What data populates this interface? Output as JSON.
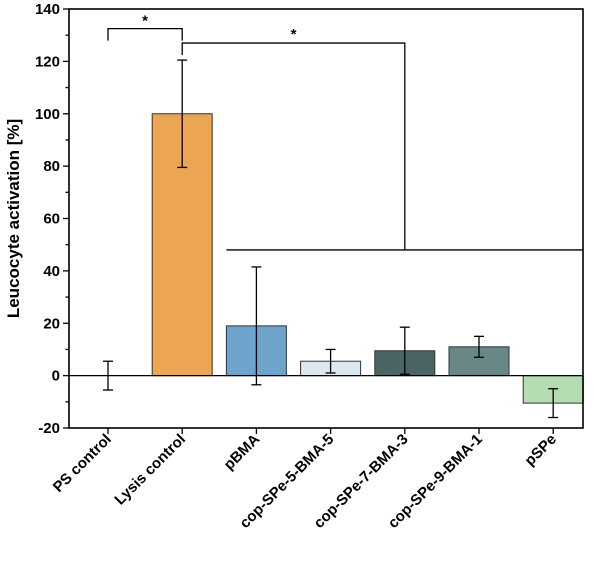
{
  "chart_data": {
    "type": "bar",
    "ylabel": "Leucocyte activation [%]",
    "xlabel": "",
    "ylim": [
      -20,
      140
    ],
    "yticks": [
      -20,
      0,
      20,
      40,
      60,
      80,
      100,
      120,
      140
    ],
    "grid": false,
    "categories": [
      "PS control",
      "Lysis control",
      "pBMA",
      "cop-SPe-5-BMA-5",
      "cop-SPe-7-BMA-3",
      "cop-SPe-9-BMA-1",
      "pSPe"
    ],
    "values": [
      0,
      100,
      19,
      5.5,
      9.5,
      11,
      -10.5
    ],
    "errors": [
      5.5,
      20.5,
      22.5,
      4.5,
      9,
      4,
      5.5
    ],
    "colors": [
      "#ffffff",
      "#eba553",
      "#6ea3cc",
      "#dce8f0",
      "#4a6563",
      "#678886",
      "#b3ddb0"
    ],
    "significance": [
      {
        "label": "*",
        "from": 0,
        "to": 1
      },
      {
        "label": "*",
        "from": 1,
        "to": [
          2,
          3,
          4,
          5,
          6
        ]
      }
    ]
  }
}
